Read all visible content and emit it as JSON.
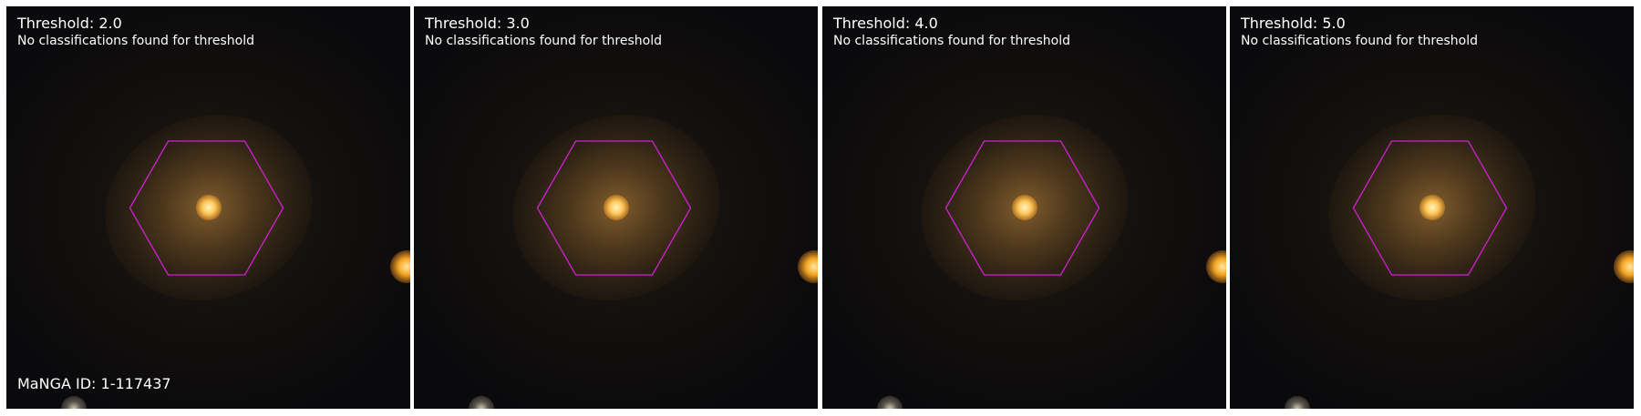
{
  "figure": {
    "manga_id_label": "MaNGA ID: 1-117437",
    "aperture_color": "#d020d0",
    "panels": [
      {
        "title": "Threshold: 2.0",
        "message": "No classifications found for threshold"
      },
      {
        "title": "Threshold: 3.0",
        "message": "No classifications found for threshold"
      },
      {
        "title": "Threshold: 4.0",
        "message": "No classifications found for threshold"
      },
      {
        "title": "Threshold: 5.0",
        "message": "No classifications found for threshold"
      }
    ]
  }
}
